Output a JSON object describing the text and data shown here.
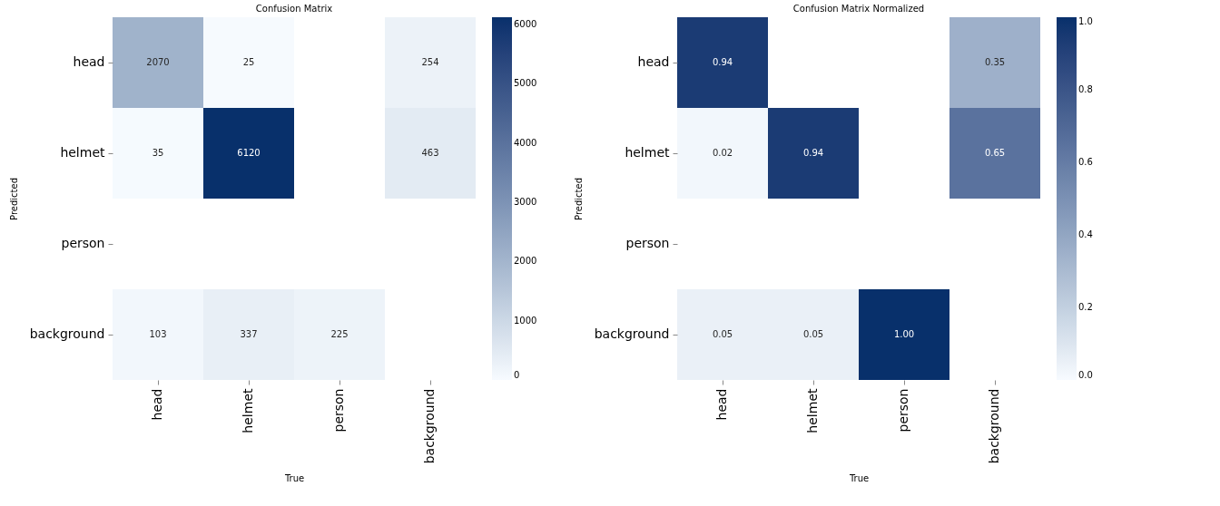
{
  "chart_data": [
    {
      "type": "heatmap",
      "title": "Confusion Matrix",
      "xlabel": "True",
      "ylabel": "Predicted",
      "categories": [
        "head",
        "helmet",
        "person",
        "background"
      ],
      "y_categories": [
        "head",
        "helmet",
        "person",
        "background"
      ],
      "cells": [
        [
          2070,
          25,
          null,
          254
        ],
        [
          35,
          6120,
          null,
          463
        ],
        [
          null,
          null,
          null,
          null
        ],
        [
          103,
          337,
          225,
          null
        ]
      ],
      "data_labels": true,
      "clim": [
        0,
        6120
      ],
      "cticks": [
        0,
        1000,
        2000,
        3000,
        4000,
        5000,
        6000
      ]
    },
    {
      "type": "heatmap",
      "title": "Confusion Matrix Normalized",
      "xlabel": "True",
      "ylabel": "Predicted",
      "categories": [
        "head",
        "helmet",
        "person",
        "background"
      ],
      "y_categories": [
        "head",
        "helmet",
        "person",
        "background"
      ],
      "cells": [
        [
          0.94,
          null,
          null,
          0.35
        ],
        [
          0.02,
          0.94,
          null,
          0.65
        ],
        [
          null,
          null,
          null,
          null
        ],
        [
          0.05,
          0.05,
          1.0,
          null
        ]
      ],
      "cell_labels": [
        [
          "0.94",
          null,
          null,
          "0.35"
        ],
        [
          "0.02",
          "0.94",
          null,
          "0.65"
        ],
        [
          null,
          null,
          null,
          null
        ],
        [
          "0.05",
          "0.05",
          "1.00",
          null
        ]
      ],
      "clim": [
        0,
        1.0
      ],
      "cticks": [
        {
          "value": 0,
          "label": "0.0"
        },
        {
          "value": 0.2,
          "label": "0.2"
        },
        {
          "value": 0.4,
          "label": "0.4"
        },
        {
          "value": 0.6,
          "label": "0.6"
        },
        {
          "value": 0.8,
          "label": "0.8"
        },
        {
          "value": 1.0,
          "label": "1.0"
        }
      ]
    }
  ]
}
